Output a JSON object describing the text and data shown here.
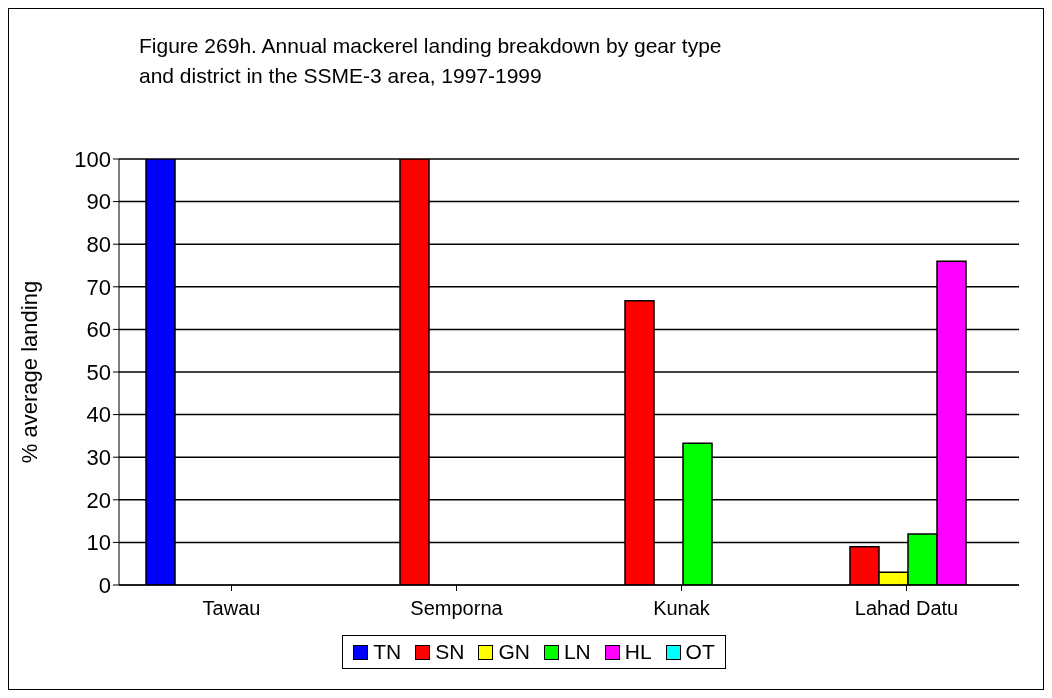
{
  "chart_data": {
    "type": "bar",
    "title": "Figure 269h. Annual mackerel landing breakdown by gear type and district in the SSME-3 area, 1997-1999",
    "ylabel": "% average landing",
    "categories": [
      "Tawau",
      "Semporna",
      "Kunak",
      "Lahad Datu"
    ],
    "series": [
      {
        "name": "TN",
        "color": "#0000ff",
        "values": [
          100,
          0,
          0,
          0
        ]
      },
      {
        "name": "SN",
        "color": "#ff0000",
        "values": [
          0,
          100,
          66.7,
          9
        ]
      },
      {
        "name": "GN",
        "color": "#ffff00",
        "values": [
          0,
          0,
          0,
          3
        ]
      },
      {
        "name": "LN",
        "color": "#00ff00",
        "values": [
          0,
          0,
          33.3,
          12
        ]
      },
      {
        "name": "HL",
        "color": "#ff00ff",
        "values": [
          0,
          0,
          0,
          76
        ]
      },
      {
        "name": "OT",
        "color": "#00ffff",
        "values": [
          0,
          0,
          0,
          0
        ]
      }
    ],
    "ylim": [
      0,
      100
    ],
    "yticks": [
      0,
      10,
      20,
      30,
      40,
      50,
      60,
      70,
      80,
      90,
      100
    ],
    "grid": "y",
    "legend": "bottom"
  }
}
